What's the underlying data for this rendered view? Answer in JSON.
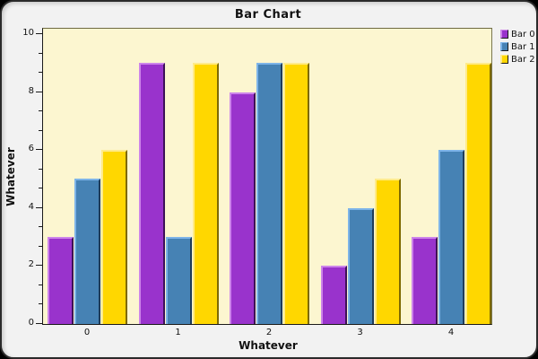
{
  "chart_data": {
    "type": "bar",
    "title": "Bar Chart",
    "xlabel": "Whatever",
    "ylabel": "Whatever",
    "categories": [
      "0",
      "1",
      "2",
      "3",
      "4"
    ],
    "series": [
      {
        "name": "Bar 0",
        "values": [
          3,
          9,
          8,
          2,
          3
        ],
        "color": "#9933cc",
        "light": "#cd84ea",
        "dark": "#3d1157"
      },
      {
        "name": "Bar 1",
        "values": [
          5,
          3,
          9,
          4,
          6
        ],
        "color": "#4682b4",
        "light": "#7db4e8",
        "dark": "#1f3c58"
      },
      {
        "name": "Bar 2",
        "values": [
          6,
          9,
          9,
          5,
          9
        ],
        "color": "#ffd700",
        "light": "#ffeb8a",
        "dark": "#7d6900"
      }
    ],
    "ylim": [
      0,
      10
    ],
    "y_major_ticks": [
      0,
      2,
      4,
      6,
      8,
      10
    ],
    "y_major_tick_labels": [
      "0",
      "2",
      "4",
      "6",
      "8",
      "10"
    ],
    "minor_ticks_per_major_interval": 2,
    "legend_position": "top-right",
    "grid": false,
    "colors": {
      "plot_background": "#fcf6d0",
      "window_background": "#f2f2f2",
      "frame_border": "#2b2b2b",
      "axis": "#1a1a1a",
      "text": "#111111"
    }
  }
}
